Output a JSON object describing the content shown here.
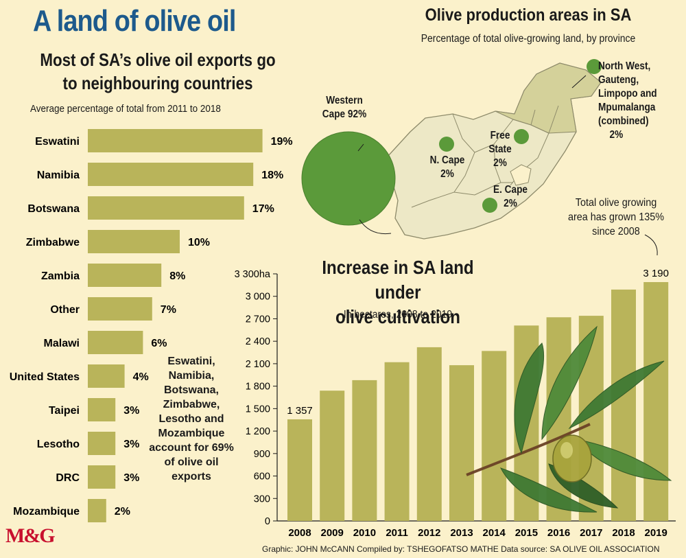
{
  "header": {
    "title": "A land of olive oil",
    "subtitle_line1": "Most of SA’s olive oil exports go",
    "subtitle_line2": "to neighbouring countries",
    "note": "Average percentage of total from 2011 to 2018"
  },
  "annotation": {
    "text": "Eswatini, Namibia, Botswana, Zimbabwe, Lesotho and Mozambique account for 69% of olive oil exports"
  },
  "map": {
    "title": "Olive production areas in SA",
    "subtitle": "Percentage of total olive-growing land, by province",
    "western_cape_line1": "Western",
    "western_cape_line2": "Cape 92%",
    "ncape_line1": "N. Cape",
    "ncape_line2": "2%",
    "free_state_line1": "Free",
    "free_state_line2": "State",
    "free_state_line3": "2%",
    "ecape_line1": "E. Cape",
    "ecape_line2": "2%",
    "nw_line1": "North West,",
    "nw_line2": "Gauteng,",
    "nw_line3": "Limpopo and",
    "nw_line4": "Mpumalanga",
    "nw_line5": "(combined)",
    "nw_line6": "2%"
  },
  "growth_callout": {
    "line1": "Total olive growing",
    "line2": "area has grown 135%",
    "line3": "since 2008"
  },
  "line_chart_header": {
    "title_line1": "Increase in SA land under",
    "title_line2": "olive cultivation",
    "subtitle": "In hectares, 2008 to 2019"
  },
  "credits": "Graphic: JOHN McCANN Compiled by: TSHEGOFATSO MATHE  Data source: SA OLIVE OIL ASSOCIATION",
  "logo": "M&G",
  "colors": {
    "bar": "#b9b45a",
    "background": "#fbf1cb",
    "title_blue": "#1d5a8c",
    "green_dot": "#5b9a3a",
    "map_fill": "#ede8c6",
    "map_north": "#d4d19a"
  },
  "chart_data": [
    {
      "type": "bar",
      "orientation": "horizontal",
      "title": "Most of SA’s olive oil exports go to neighbouring countries",
      "subtitle": "Average percentage of total from 2011 to 2018",
      "categories": [
        "Eswatini",
        "Namibia",
        "Botswana",
        "Zimbabwe",
        "Zambia",
        "Other",
        "Malawi",
        "United States",
        "Taipei",
        "Lesotho",
        "DRC",
        "Mozambique"
      ],
      "values": [
        19,
        18,
        17,
        10,
        8,
        7,
        6,
        4,
        3,
        3,
        3,
        2
      ],
      "value_labels": [
        "19%",
        "18%",
        "17%",
        "10%",
        "8%",
        "7%",
        "6%",
        "4%",
        "3%",
        "3%",
        "3%",
        "2%"
      ]
    },
    {
      "type": "bar",
      "title": "Increase in SA land under olive cultivation",
      "subtitle": "In hectares, 2008 to 2019",
      "categories": [
        "2008",
        "2009",
        "2010",
        "2011",
        "2012",
        "2013",
        "2014",
        "2015",
        "2016",
        "2017",
        "2018",
        "2019"
      ],
      "values": [
        1357,
        1740,
        1880,
        2120,
        2320,
        2080,
        2270,
        2610,
        2720,
        2740,
        3090,
        3190
      ],
      "value_labels": {
        "2008": "1 357",
        "2019": "3 190"
      },
      "ylim": [
        0,
        3300
      ],
      "yticks": [
        0,
        300,
        600,
        900,
        1200,
        1500,
        1800,
        2100,
        2400,
        2700,
        3000,
        3300
      ],
      "ytick_labels": [
        "0",
        "300",
        "600",
        "900",
        "1 200",
        "1 500",
        "1 800",
        "2 100",
        "2 400",
        "2 700",
        "3 000",
        "3 300ha"
      ]
    }
  ]
}
